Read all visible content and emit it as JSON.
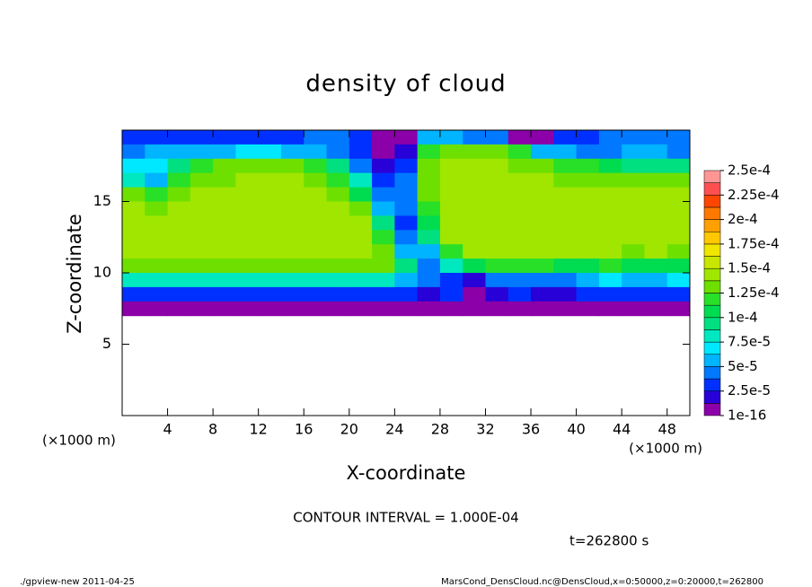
{
  "chart_data": {
    "type": "heatmap",
    "title": "density of cloud",
    "xlabel": "X-coordinate",
    "ylabel": "Z-coordinate",
    "x_unit": "(×1000 m)",
    "y_unit": "(×1000 m)",
    "annotation": "CONTOUR INTERVAL = 1.000E-04",
    "time_label": "t=262800 s",
    "footer_left": "./gpview-new  2011-04-25",
    "footer_right": "MarsCond_DensCloud.nc@DensCloud,x=0:50000,z=0:20000,t=262800",
    "xlim": [
      0,
      50
    ],
    "ylim": [
      0,
      20
    ],
    "xticks": [
      4,
      8,
      12,
      16,
      20,
      24,
      28,
      32,
      36,
      40,
      44,
      48
    ],
    "yticks": [
      5,
      10,
      15
    ],
    "x": [
      1,
      3,
      5,
      7,
      9,
      11,
      13,
      15,
      17,
      19,
      21,
      23,
      25,
      27,
      29,
      31,
      33,
      35,
      37,
      39,
      41,
      43,
      45,
      47,
      49
    ],
    "z": [
      19.5,
      18.5,
      17.5,
      16.5,
      15.5,
      14.5,
      13.5,
      12.5,
      11.5,
      10.5,
      9.5,
      8.5,
      7.5
    ],
    "values": [
      [
        3e-05,
        3e-05,
        3e-05,
        3e-05,
        3e-05,
        3e-05,
        3e-05,
        3e-05,
        4e-05,
        4e-05,
        3e-05,
        1e-05,
        1e-05,
        6e-05,
        6e-05,
        5e-05,
        5e-05,
        1e-05,
        1e-05,
        3e-05,
        3e-05,
        4e-05,
        4e-05,
        4e-05,
        4e-05
      ],
      [
        5e-05,
        6e-05,
        6e-05,
        6e-05,
        6e-05,
        7e-05,
        7e-05,
        6e-05,
        6e-05,
        5e-05,
        3e-05,
        1e-05,
        2e-05,
        0.00012,
        0.00013,
        0.00013,
        0.00013,
        0.00012,
        6e-05,
        6e-05,
        5e-05,
        5e-05,
        6e-05,
        6e-05,
        5e-05
      ],
      [
        7e-05,
        7e-05,
        0.0001,
        0.00012,
        0.00013,
        0.00013,
        0.00013,
        0.00013,
        0.00012,
        0.0001,
        5e-05,
        2e-05,
        3e-05,
        0.00013,
        0.00014,
        0.00014,
        0.00014,
        0.00013,
        0.00013,
        0.00012,
        0.00012,
        0.00011,
        0.0001,
        0.0001,
        0.0001
      ],
      [
        8e-05,
        6e-05,
        0.00012,
        0.00013,
        0.00013,
        0.00014,
        0.00014,
        0.00014,
        0.00013,
        0.00012,
        8e-05,
        3e-05,
        4e-05,
        0.00013,
        0.00014,
        0.00014,
        0.00014,
        0.00014,
        0.00014,
        0.00013,
        0.00013,
        0.00013,
        0.00013,
        0.00013,
        0.00013
      ],
      [
        0.00013,
        0.00012,
        0.00013,
        0.00014,
        0.00014,
        0.00014,
        0.00014,
        0.00014,
        0.00014,
        0.00013,
        0.00011,
        4e-05,
        5e-05,
        0.00013,
        0.00014,
        0.00014,
        0.00014,
        0.00014,
        0.00014,
        0.00014,
        0.00014,
        0.00014,
        0.00014,
        0.00014,
        0.00014
      ],
      [
        0.00014,
        0.00013,
        0.00014,
        0.00014,
        0.00014,
        0.00014,
        0.00014,
        0.00014,
        0.00014,
        0.00014,
        0.00013,
        6e-05,
        4e-05,
        0.00012,
        0.00014,
        0.00014,
        0.00014,
        0.00014,
        0.00014,
        0.00014,
        0.00014,
        0.00014,
        0.00014,
        0.00014,
        0.00014
      ],
      [
        0.00014,
        0.00014,
        0.00014,
        0.00014,
        0.00014,
        0.00014,
        0.00014,
        0.00014,
        0.00014,
        0.00014,
        0.00014,
        9e-05,
        3e-05,
        0.00011,
        0.00014,
        0.00014,
        0.00014,
        0.00014,
        0.00014,
        0.00014,
        0.00014,
        0.00014,
        0.00014,
        0.00014,
        0.00014
      ],
      [
        0.00014,
        0.00014,
        0.00014,
        0.00014,
        0.00014,
        0.00014,
        0.00014,
        0.00014,
        0.00014,
        0.00014,
        0.00014,
        0.00012,
        4e-05,
        9e-05,
        0.00014,
        0.00014,
        0.00014,
        0.00014,
        0.00014,
        0.00014,
        0.00014,
        0.00014,
        0.00014,
        0.00014,
        0.00014
      ],
      [
        0.00014,
        0.00014,
        0.00014,
        0.00014,
        0.00014,
        0.00014,
        0.00014,
        0.00014,
        0.00014,
        0.00014,
        0.00014,
        0.00013,
        6e-05,
        6e-05,
        0.00012,
        0.00014,
        0.00014,
        0.00014,
        0.00014,
        0.00014,
        0.00014,
        0.00014,
        0.00013,
        0.00014,
        0.00013
      ],
      [
        0.00013,
        0.00013,
        0.00013,
        0.00013,
        0.00013,
        0.00013,
        0.00013,
        0.00013,
        0.00013,
        0.00013,
        0.00013,
        0.00013,
        9e-05,
        5e-05,
        8e-05,
        0.00011,
        0.00012,
        0.00012,
        0.00012,
        0.00011,
        0.00011,
        0.00012,
        0.00011,
        0.00011,
        0.00011
      ],
      [
        8e-05,
        8e-05,
        8e-05,
        8e-05,
        8e-05,
        8e-05,
        8e-05,
        8e-05,
        8e-05,
        8e-05,
        8e-05,
        8e-05,
        6e-05,
        4e-05,
        3e-05,
        2e-05,
        4e-05,
        5e-05,
        4e-05,
        5e-05,
        6e-05,
        7e-05,
        6e-05,
        6e-05,
        7e-05
      ],
      [
        3e-05,
        3e-05,
        3e-05,
        3e-05,
        3e-05,
        3e-05,
        3e-05,
        3e-05,
        3e-05,
        3e-05,
        3e-05,
        3e-05,
        3e-05,
        2e-05,
        3e-05,
        1e-05,
        2e-05,
        3e-05,
        2e-05,
        2e-05,
        3e-05,
        3e-05,
        3e-05,
        3e-05,
        3e-05
      ],
      [
        1e-05,
        1e-05,
        1e-05,
        1e-05,
        1e-05,
        1e-05,
        1e-05,
        1e-05,
        1e-05,
        1e-05,
        1e-05,
        1e-05,
        1e-05,
        1e-05,
        1e-05,
        1e-05,
        1e-05,
        1e-05,
        1e-05,
        1e-05,
        1e-05,
        1e-05,
        1e-05,
        1e-05,
        1e-05
      ]
    ],
    "colorbar_ticks": [
      {
        "value": 1e-16,
        "label": "1e-16"
      },
      {
        "value": 2.5e-05,
        "label": "2.5e-5"
      },
      {
        "value": 5e-05,
        "label": "5e-5"
      },
      {
        "value": 7.5e-05,
        "label": "7.5e-5"
      },
      {
        "value": 0.0001,
        "label": "1e-4"
      },
      {
        "value": 0.000125,
        "label": "1.25e-4"
      },
      {
        "value": 0.00015,
        "label": "1.5e-4"
      },
      {
        "value": 0.000175,
        "label": "1.75e-4"
      },
      {
        "value": 0.0002,
        "label": "2e-4"
      },
      {
        "value": 0.000225,
        "label": "2.25e-4"
      },
      {
        "value": 0.00025,
        "label": "2.5e-4"
      }
    ],
    "colors": [
      "#8b00a8",
      "#2800d8",
      "#0030ff",
      "#0078ff",
      "#00b4ff",
      "#00e8ff",
      "#00e8c0",
      "#00e080",
      "#00dc50",
      "#28e028",
      "#6ee000",
      "#a0e600",
      "#c8e600",
      "#f0e600",
      "#ffc800",
      "#ffa000",
      "#ff7800",
      "#ff4600",
      "#ff5050",
      "#ff9696"
    ]
  }
}
